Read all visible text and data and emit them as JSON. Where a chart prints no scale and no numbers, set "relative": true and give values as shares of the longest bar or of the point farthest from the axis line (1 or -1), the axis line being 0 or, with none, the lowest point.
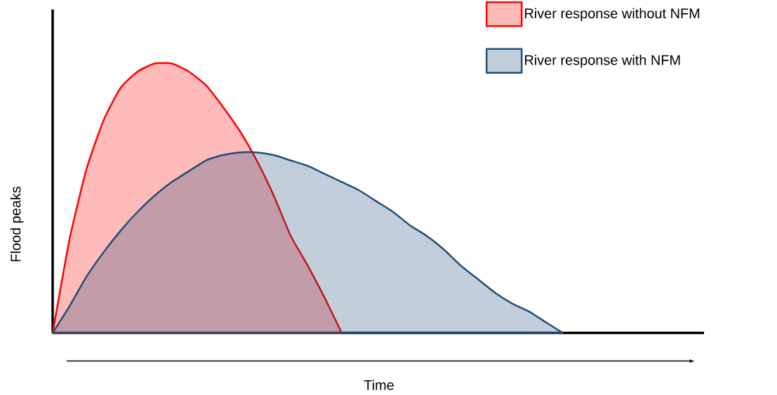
{
  "chart_data": {
    "type": "area",
    "relative": true,
    "xlabel": "Time",
    "ylabel": "Flood peaks",
    "legend": "top right",
    "categories": [
      null,
      null,
      null,
      null,
      null,
      null,
      null,
      null,
      null,
      null,
      null,
      null,
      null,
      null,
      null,
      null,
      null,
      null,
      null,
      null,
      null,
      null,
      null,
      null,
      null,
      null,
      null,
      null,
      null,
      null,
      null,
      null,
      null,
      null,
      null,
      null,
      null,
      null,
      null
    ],
    "series": [
      {
        "name": "River response without NFM",
        "color": "#ff0000",
        "values": [
          0,
          0.35,
          0.61,
          0.79,
          0.91,
          0.97,
          1.0,
          1.0,
          0.97,
          0.92,
          0.84,
          0.75,
          0.64,
          0.51,
          0.36,
          0.25,
          0.13,
          0,
          null,
          null,
          null,
          null,
          null,
          null,
          null,
          null,
          null,
          null,
          null,
          null,
          null,
          null,
          null,
          null,
          null,
          null,
          null,
          null,
          null
        ]
      },
      {
        "name": "River response with NFM",
        "color": "#1f4e79",
        "values": [
          0,
          0.1,
          0.21,
          0.3,
          0.38,
          0.45,
          0.51,
          0.56,
          0.6,
          0.64,
          0.66,
          0.67,
          0.67,
          0.66,
          0.64,
          0.62,
          0.59,
          0.56,
          0.53,
          0.49,
          0.45,
          0.4,
          0.36,
          0.31,
          0.25,
          0.2,
          0.15,
          0.11,
          0.08,
          0.04,
          0,
          null,
          null,
          null,
          null,
          null,
          null,
          null,
          null
        ]
      }
    ]
  }
}
